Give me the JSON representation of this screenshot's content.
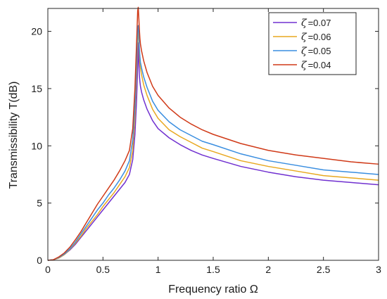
{
  "chart_data": {
    "type": "line",
    "xlabel": "Frequency ratio  Ω",
    "ylabel": "Transmissibility T(dB)",
    "xlim": [
      0,
      3
    ],
    "ylim": [
      0,
      22
    ],
    "xticks": [
      0,
      0.5,
      1,
      1.5,
      2,
      2.5,
      3
    ],
    "xtick_labels": [
      "0",
      "0.5",
      "1",
      "1.5",
      "2",
      "2.5",
      "3"
    ],
    "yticks": [
      0,
      5,
      10,
      15,
      20
    ],
    "ytick_labels": [
      "0",
      "5",
      "10",
      "15",
      "20"
    ],
    "grid": false,
    "legend_position": "top-right",
    "series": [
      {
        "name": "ζ =0.07",
        "symbol": "ζ",
        "value_label": "=0.07",
        "color": "#7030d0",
        "x": [
          0,
          0.05,
          0.1,
          0.15,
          0.2,
          0.25,
          0.3,
          0.35,
          0.4,
          0.45,
          0.5,
          0.55,
          0.6,
          0.65,
          0.7,
          0.74,
          0.77,
          0.79,
          0.805,
          0.815,
          0.82,
          0.825,
          0.83,
          0.835,
          0.84,
          0.85,
          0.87,
          0.9,
          0.95,
          1.0,
          1.1,
          1.2,
          1.3,
          1.4,
          1.5,
          1.75,
          2.0,
          2.25,
          2.5,
          2.75,
          3.0
        ],
        "y": [
          0,
          0.05,
          0.2,
          0.5,
          0.9,
          1.4,
          2.0,
          2.6,
          3.2,
          3.8,
          4.4,
          5.0,
          5.6,
          6.2,
          6.8,
          7.5,
          8.8,
          11.0,
          14.0,
          17.0,
          19.0,
          17.5,
          16.2,
          15.6,
          15.2,
          14.7,
          14.0,
          13.2,
          12.2,
          11.5,
          10.7,
          10.1,
          9.6,
          9.2,
          8.9,
          8.2,
          7.7,
          7.3,
          7.0,
          6.8,
          6.6
        ]
      },
      {
        "name": "ζ =0.06",
        "symbol": "ζ",
        "value_label": "=0.06",
        "color": "#e8a820",
        "x": [
          0,
          0.05,
          0.1,
          0.15,
          0.2,
          0.25,
          0.3,
          0.35,
          0.4,
          0.45,
          0.5,
          0.55,
          0.6,
          0.65,
          0.7,
          0.74,
          0.77,
          0.79,
          0.805,
          0.815,
          0.82,
          0.825,
          0.83,
          0.835,
          0.84,
          0.85,
          0.87,
          0.9,
          0.95,
          1.0,
          1.1,
          1.2,
          1.3,
          1.4,
          1.5,
          1.75,
          2.0,
          2.25,
          2.5,
          2.75,
          3.0
        ],
        "y": [
          0,
          0.05,
          0.2,
          0.5,
          0.95,
          1.5,
          2.1,
          2.8,
          3.4,
          4.0,
          4.7,
          5.3,
          5.9,
          6.6,
          7.3,
          8.1,
          9.6,
          12.5,
          16.5,
          19.5,
          20.5,
          19.2,
          18.0,
          17.2,
          16.8,
          16.2,
          15.3,
          14.4,
          13.2,
          12.4,
          11.4,
          10.8,
          10.3,
          9.8,
          9.5,
          8.7,
          8.2,
          7.8,
          7.4,
          7.2,
          7.0
        ]
      },
      {
        "name": "ζ =0.05",
        "symbol": "ζ",
        "value_label": "=0.05",
        "color": "#3a8ee0",
        "x": [
          0,
          0.05,
          0.1,
          0.15,
          0.2,
          0.25,
          0.3,
          0.35,
          0.4,
          0.45,
          0.5,
          0.55,
          0.6,
          0.65,
          0.7,
          0.74,
          0.77,
          0.79,
          0.805,
          0.815,
          0.82,
          0.825,
          0.83,
          0.835,
          0.84,
          0.85,
          0.87,
          0.9,
          0.95,
          1.0,
          1.1,
          1.2,
          1.3,
          1.4,
          1.5,
          1.75,
          2.0,
          2.25,
          2.5,
          2.75,
          3.0
        ],
        "y": [
          0,
          0.05,
          0.25,
          0.55,
          1.0,
          1.6,
          2.3,
          3.0,
          3.7,
          4.4,
          5.0,
          5.7,
          6.3,
          7.0,
          7.8,
          8.7,
          10.5,
          13.5,
          17.5,
          20.3,
          20.5,
          19.8,
          18.6,
          17.8,
          17.3,
          16.8,
          16.0,
          15.1,
          13.9,
          13.1,
          12.1,
          11.4,
          10.9,
          10.4,
          10.1,
          9.3,
          8.7,
          8.3,
          7.9,
          7.7,
          7.5
        ]
      },
      {
        "name": "ζ =0.04",
        "symbol": "ζ",
        "value_label": "=0.04",
        "color": "#d03a18",
        "x": [
          0,
          0.05,
          0.1,
          0.15,
          0.2,
          0.25,
          0.3,
          0.35,
          0.4,
          0.45,
          0.5,
          0.55,
          0.6,
          0.65,
          0.7,
          0.74,
          0.77,
          0.79,
          0.805,
          0.815,
          0.82,
          0.825,
          0.83,
          0.835,
          0.84,
          0.85,
          0.87,
          0.9,
          0.95,
          1.0,
          1.1,
          1.2,
          1.3,
          1.4,
          1.5,
          1.75,
          2.0,
          2.25,
          2.5,
          2.75,
          3.0
        ],
        "y": [
          0,
          0.05,
          0.3,
          0.65,
          1.15,
          1.8,
          2.5,
          3.3,
          4.1,
          4.9,
          5.6,
          6.3,
          7.0,
          7.8,
          8.7,
          9.6,
          11.5,
          15.0,
          19.0,
          21.8,
          22.1,
          21.2,
          20.2,
          19.4,
          18.9,
          18.3,
          17.4,
          16.4,
          15.2,
          14.4,
          13.3,
          12.5,
          11.9,
          11.4,
          11.0,
          10.2,
          9.6,
          9.2,
          8.9,
          8.6,
          8.4
        ]
      }
    ]
  }
}
